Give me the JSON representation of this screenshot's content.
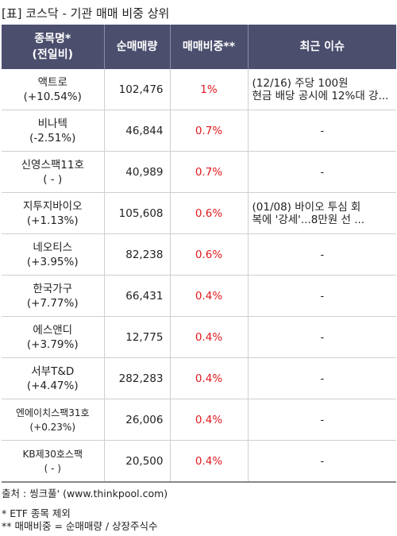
{
  "title": "[표] 코스닥 - 기관 매매 비중 상위",
  "headers": {
    "name_line1": "종목명*",
    "name_line2": "(전일비)",
    "volume": "순매매량",
    "ratio": "매매비중**",
    "issue": "최근 이슈"
  },
  "rows": [
    {
      "name": "액트로",
      "change": "(+10.54%)",
      "volume": "102,476",
      "ratio": "1%",
      "issue_line1": "(12/16) 주당 100원",
      "issue_line2": "현금 배당 공시에 12%대 강..."
    },
    {
      "name": "비나텍",
      "change": "(-2.51%)",
      "volume": "46,844",
      "ratio": "0.7%",
      "issue_line1": "-",
      "issue_line2": ""
    },
    {
      "name": "신영스팩11호",
      "change": "( - )",
      "volume": "40,989",
      "ratio": "0.7%",
      "issue_line1": "-",
      "issue_line2": ""
    },
    {
      "name": "지투지바이오",
      "change": "(+1.13%)",
      "volume": "105,608",
      "ratio": "0.6%",
      "issue_line1": "(01/08) 바이오 투심 회",
      "issue_line2": "복에 '강세'...8만원 선 ..."
    },
    {
      "name": "네오티스",
      "change": "(+3.95%)",
      "volume": "82,238",
      "ratio": "0.6%",
      "issue_line1": "-",
      "issue_line2": ""
    },
    {
      "name": "한국가구",
      "change": "(+7.77%)",
      "volume": "66,431",
      "ratio": "0.4%",
      "issue_line1": "-",
      "issue_line2": ""
    },
    {
      "name": "에스앤디",
      "change": "(+3.79%)",
      "volume": "12,775",
      "ratio": "0.4%",
      "issue_line1": "-",
      "issue_line2": ""
    },
    {
      "name": "서부T&D",
      "change": "(+4.47%)",
      "volume": "282,283",
      "ratio": "0.4%",
      "issue_line1": "-",
      "issue_line2": ""
    },
    {
      "name": "엔에이치스팩31호",
      "change": "(+0.23%)",
      "volume": "26,006",
      "ratio": "0.4%",
      "issue_line1": "-",
      "issue_line2": ""
    },
    {
      "name": "KB제30호스팩",
      "change": "( - )",
      "volume": "20,500",
      "ratio": "0.4%",
      "issue_line1": "-",
      "issue_line2": ""
    }
  ],
  "footer": {
    "source": "출처 : 씽크풀' (www.thinkpool.com)",
    "note1": "* ETF 종목 제외",
    "note2": "** 매매비중 = 순매매량 / 상장주식수"
  }
}
